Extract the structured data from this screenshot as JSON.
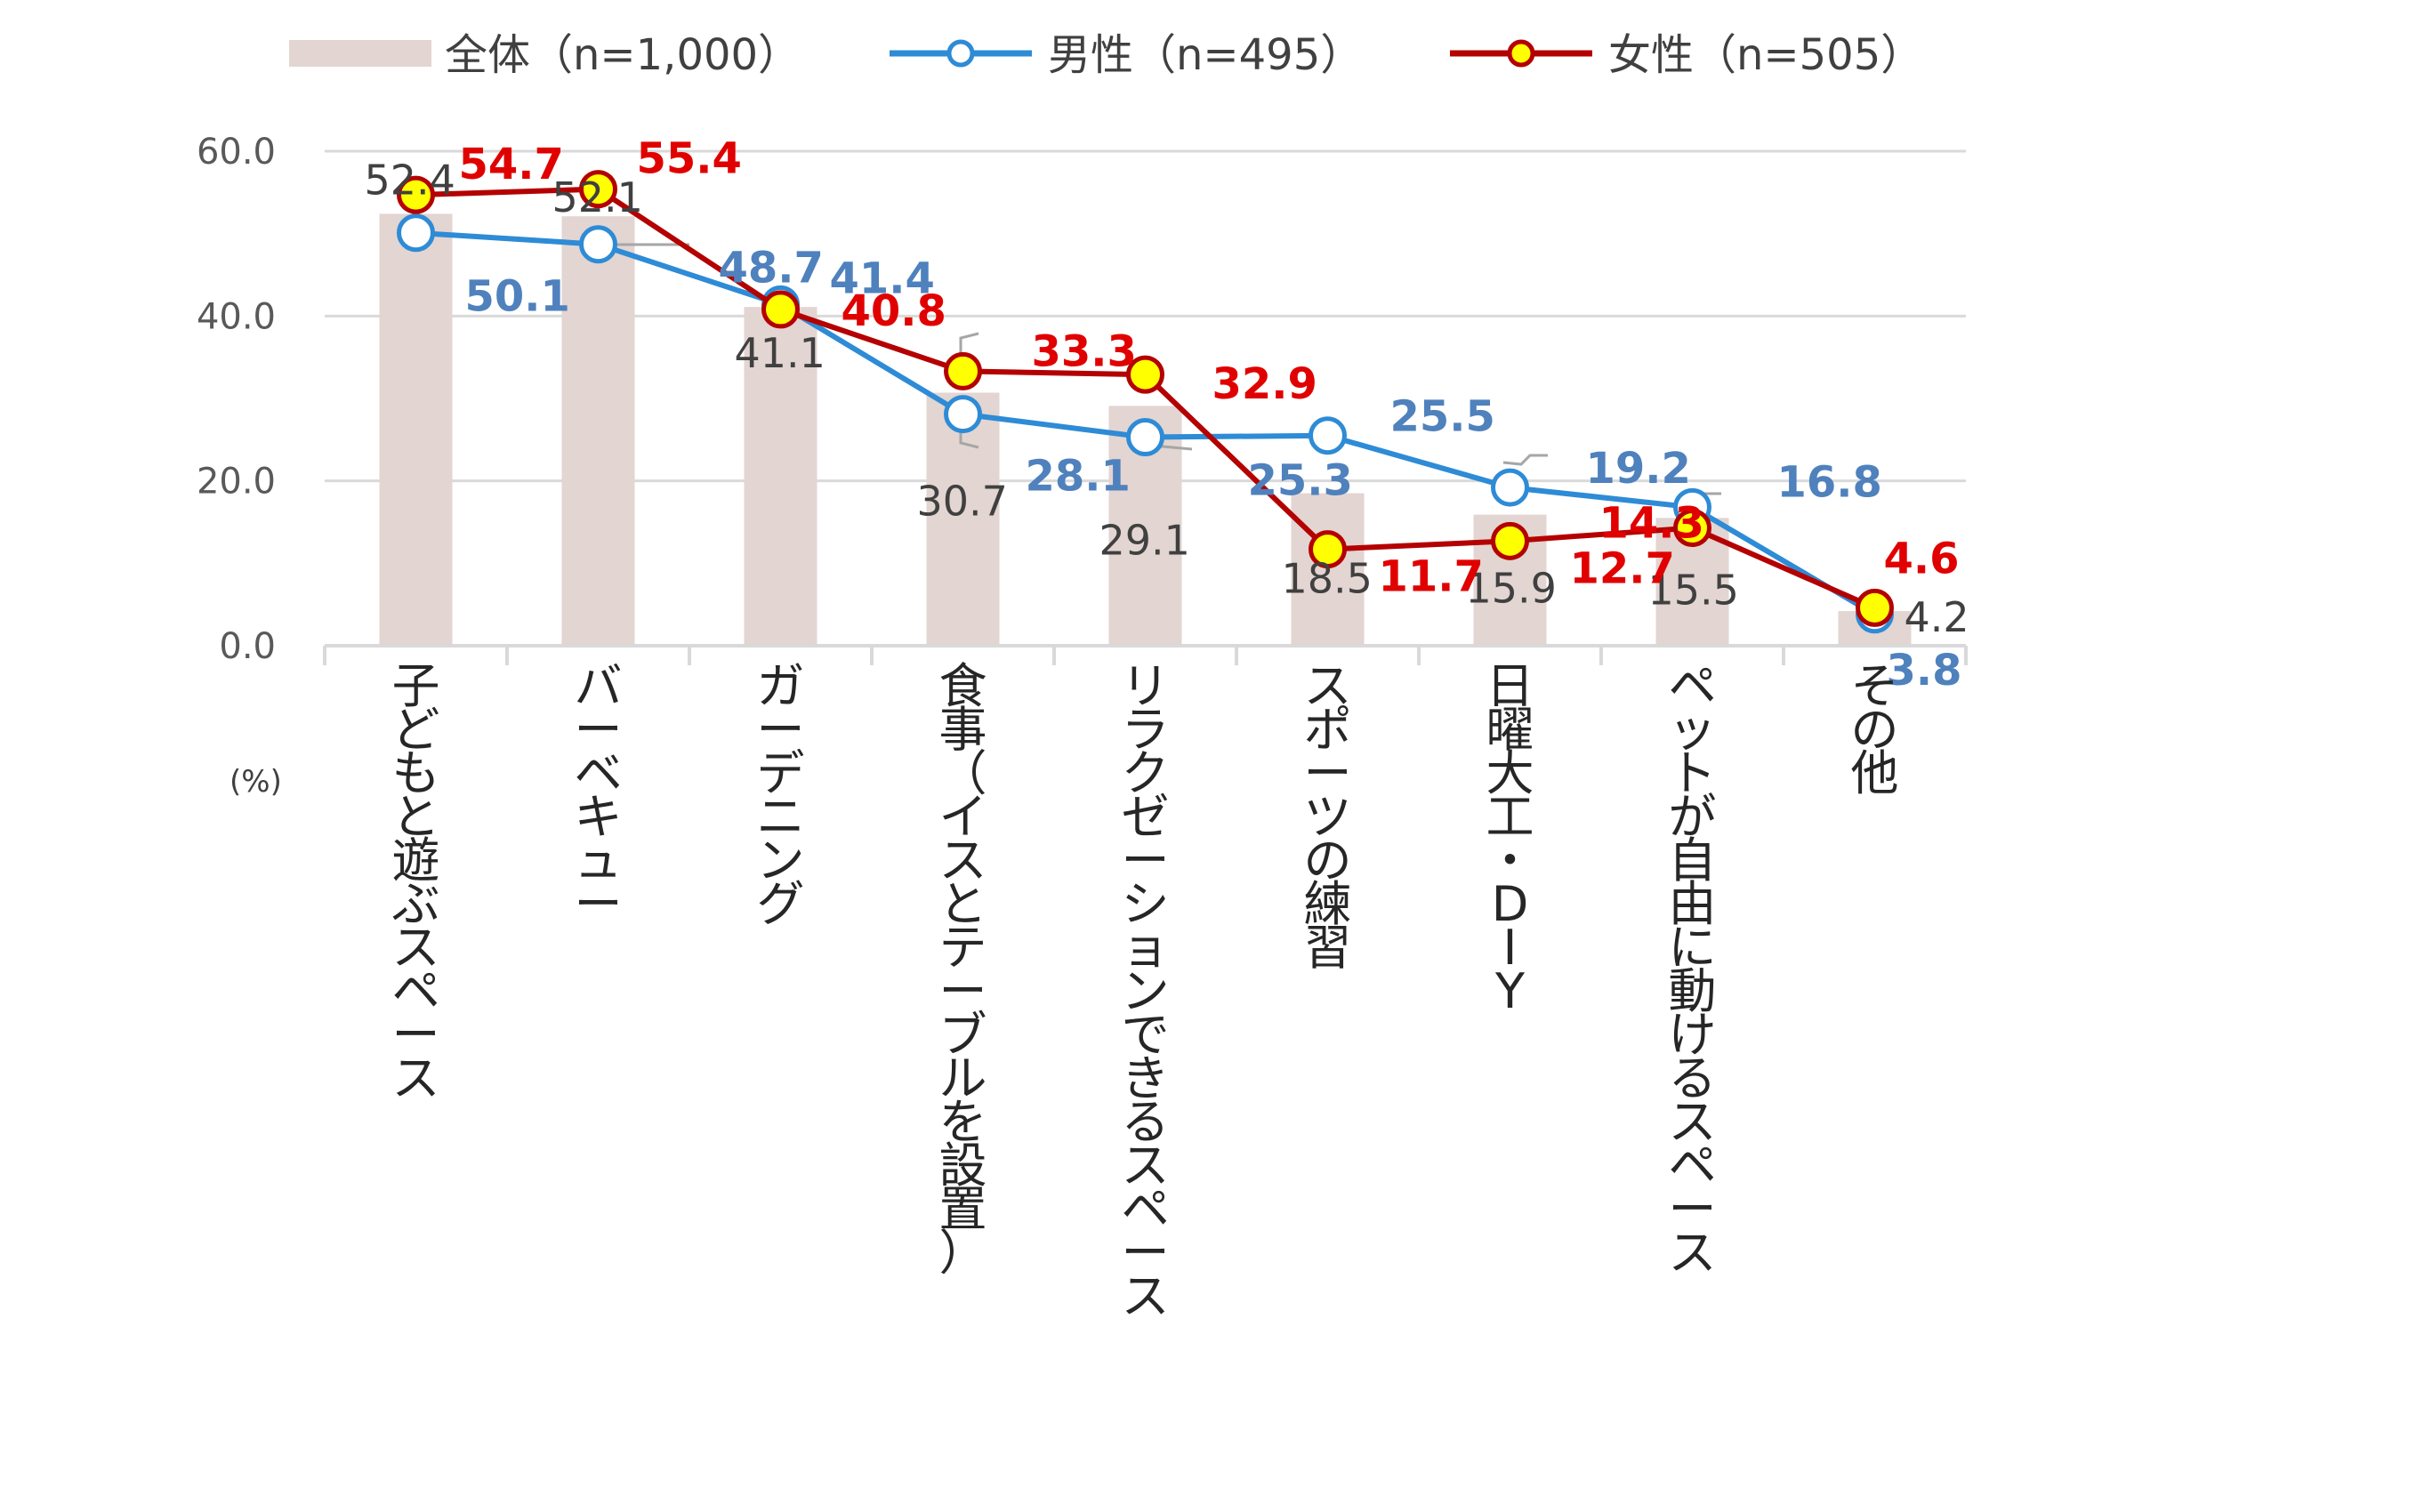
{
  "chart_data": {
    "type": "bar+line",
    "unit_label": "(%)",
    "categories": [
      "子どもと遊ぶスペース",
      "バーベキュー",
      "ガーデニング",
      "食事（イスとテーブルを設置）",
      "リラクゼーションできるスペース",
      "スポーツの練習",
      "日曜大工・DIY",
      "ペットが自由に動けるスペース",
      "その他"
    ],
    "ylim": [
      0,
      60
    ],
    "yticks": [
      "0.0",
      "20.0",
      "40.0",
      "60.0"
    ],
    "grid": true,
    "legend_position": "top",
    "series": [
      {
        "name": "全体（n=1,000）",
        "kind": "bar",
        "color": "#E2D5D2",
        "values": [
          52.4,
          52.1,
          41.1,
          30.7,
          29.1,
          18.5,
          15.9,
          15.5,
          4.2
        ]
      },
      {
        "name": "男性（n=495）",
        "kind": "line",
        "color": "#2E8BD6",
        "marker_fill": "#FFFFFF",
        "label_color": "#4F81BD",
        "values": [
          50.1,
          48.7,
          41.4,
          28.1,
          25.3,
          25.5,
          19.2,
          16.8,
          3.8
        ]
      },
      {
        "name": "女性（n=505）",
        "kind": "line",
        "color": "#B40000",
        "marker_fill": "#FFFF00",
        "label_color": "#E00000",
        "values": [
          54.7,
          55.4,
          40.8,
          33.3,
          32.9,
          11.7,
          12.7,
          14.3,
          4.6
        ]
      }
    ]
  }
}
